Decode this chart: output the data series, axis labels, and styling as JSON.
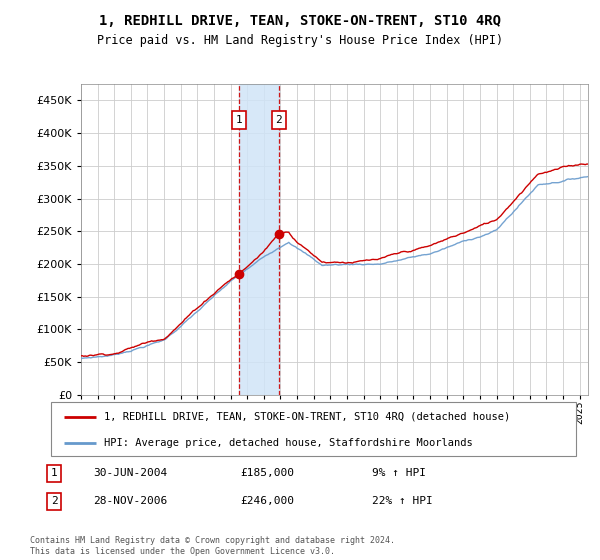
{
  "title": "1, REDHILL DRIVE, TEAN, STOKE-ON-TRENT, ST10 4RQ",
  "subtitle": "Price paid vs. HM Land Registry's House Price Index (HPI)",
  "legend_line1": "1, REDHILL DRIVE, TEAN, STOKE-ON-TRENT, ST10 4RQ (detached house)",
  "legend_line2": "HPI: Average price, detached house, Staffordshire Moorlands",
  "transaction1_date": "30-JUN-2004",
  "transaction1_price": "£185,000",
  "transaction1_hpi": "9% ↑ HPI",
  "transaction2_date": "28-NOV-2006",
  "transaction2_price": "£246,000",
  "transaction2_hpi": "22% ↑ HPI",
  "footnote": "Contains HM Land Registry data © Crown copyright and database right 2024.\nThis data is licensed under the Open Government Licence v3.0.",
  "red_color": "#cc0000",
  "blue_color": "#6699cc",
  "shading_color": "#d0e4f7",
  "transaction1_x": 2004.5,
  "transaction2_x": 2006.9,
  "t1_y": 185000,
  "t2_y": 246000,
  "ylim": [
    0,
    475000
  ],
  "yticks": [
    0,
    50000,
    100000,
    150000,
    200000,
    250000,
    300000,
    350000,
    400000,
    450000
  ],
  "xlim_start": 1995,
  "xlim_end": 2025.5
}
